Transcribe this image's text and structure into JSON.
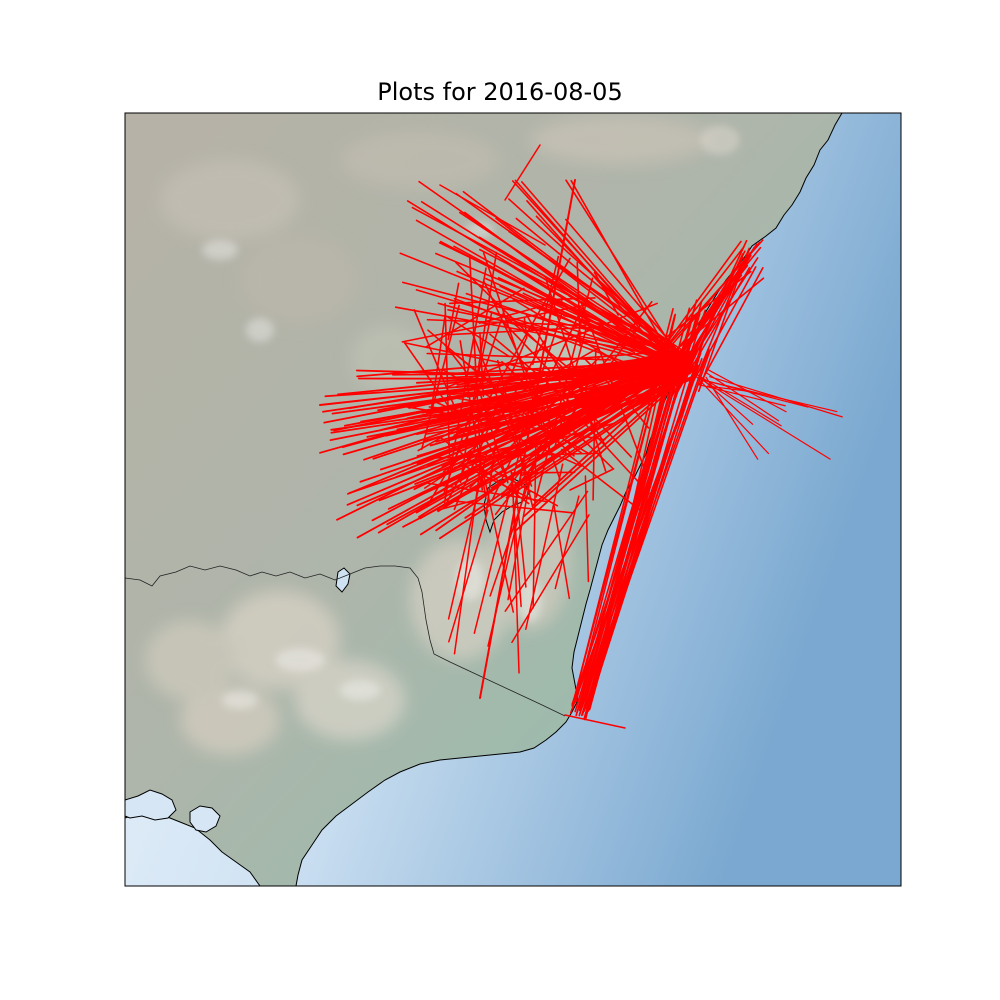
{
  "figure": {
    "title": "Plots for 2016-08-05"
  },
  "colors": {
    "track": "#ff0000",
    "coastline": "#000000",
    "ocean_light": "#d2e4f4",
    "ocean_dark": "#7aa8d0",
    "land_base": "#9fbcae",
    "land_inland": "#b4b2a6",
    "relief_highlight": "#f0e6de"
  },
  "map": {
    "basemap": "shaded-relief",
    "track_count_description": "dense red flight tracks",
    "date": "2016-08-05"
  }
}
